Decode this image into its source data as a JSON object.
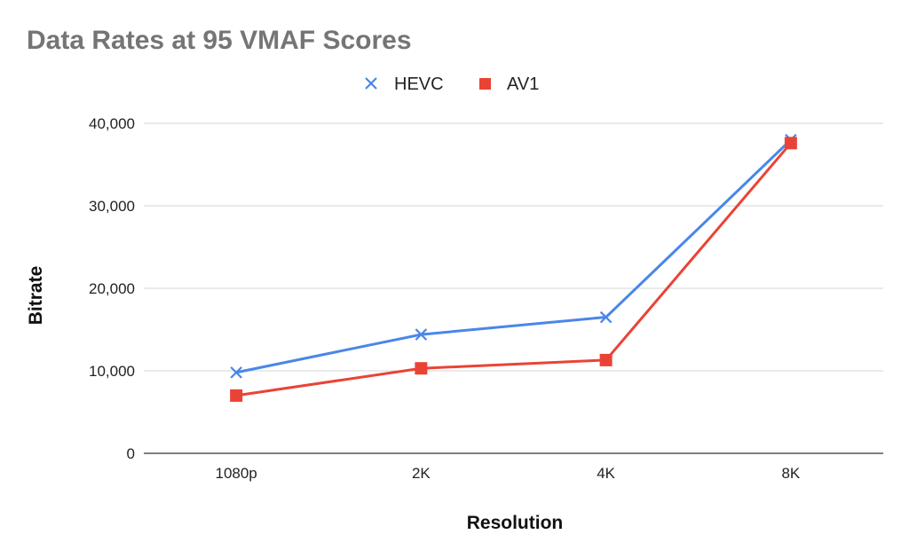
{
  "chart_data": {
    "type": "line",
    "title": "Data Rates at 95 VMAF Scores",
    "xlabel": "Resolution",
    "ylabel": "Bitrate",
    "categories": [
      "1080p",
      "2K",
      "4K",
      "8K"
    ],
    "ylim": [
      0,
      40000
    ],
    "yticks": [
      0,
      10000,
      20000,
      30000,
      40000
    ],
    "ytick_labels": [
      "0",
      "10,000",
      "20,000",
      "30,000",
      "40,000"
    ],
    "grid": true,
    "legend_position": "top",
    "series": [
      {
        "name": "HEVC",
        "marker": "x-icon",
        "color": "#4a86e8",
        "values": [
          9800,
          14400,
          16500,
          38000
        ]
      },
      {
        "name": "AV1",
        "marker": "square-icon",
        "color": "#ea4335",
        "values": [
          7000,
          10300,
          11300,
          37600
        ]
      }
    ]
  }
}
